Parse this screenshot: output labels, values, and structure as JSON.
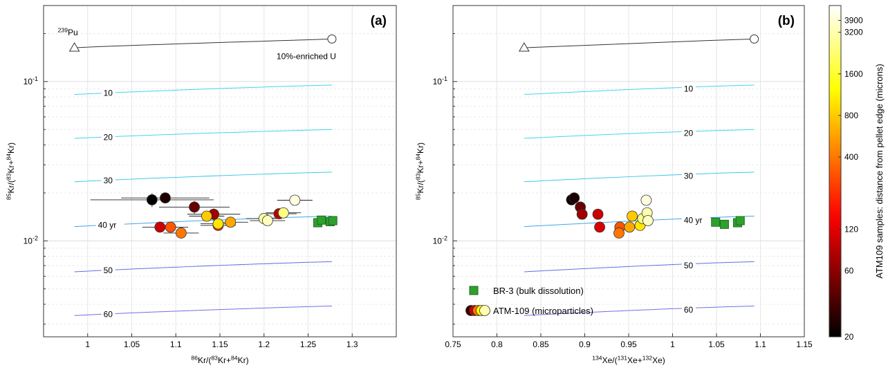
{
  "chart_data": [
    {
      "panel": "(a)",
      "type": "scatter",
      "xlabel": "86Kr/(83Kr+84Kr)",
      "ylabel": "85Kr/(83Kr+84Kr)",
      "xlim": [
        0.95,
        1.35
      ],
      "ylim": [
        0.0025,
        0.3
      ],
      "yscale": "log",
      "xticks": [
        "1",
        "1.05",
        "1.1",
        "1.15",
        "1.2",
        "1.25",
        "1.3"
      ],
      "yticks": [
        "10-1",
        "10-2"
      ],
      "grid": true,
      "endmembers": [
        {
          "label": "239Pu",
          "x": 0.985,
          "y": 0.163,
          "marker": "triangle"
        },
        {
          "label": "10%-enriched U",
          "x": 1.277,
          "y": 0.185,
          "marker": "circle"
        }
      ],
      "decay_lines": [
        {
          "label": "10",
          "x": [
            0.985,
            1.277
          ],
          "y": [
            0.083,
            0.095
          ]
        },
        {
          "label": "20",
          "x": [
            0.985,
            1.277
          ],
          "y": [
            0.044,
            0.05
          ]
        },
        {
          "label": "30",
          "x": [
            0.985,
            1.277
          ],
          "y": [
            0.0235,
            0.027
          ]
        },
        {
          "label": "40 yr",
          "x": [
            0.985,
            1.277
          ],
          "y": [
            0.0123,
            0.0143
          ]
        },
        {
          "label": "50",
          "x": [
            0.985,
            1.277
          ],
          "y": [
            0.0064,
            0.0074
          ]
        },
        {
          "label": "60",
          "x": [
            0.985,
            1.277
          ],
          "y": [
            0.0034,
            0.0039
          ]
        }
      ],
      "series": [
        {
          "name": "BR-3 (bulk dissolution)",
          "marker": "square",
          "color": "#2ea02e",
          "points": [
            {
              "x": 1.261,
              "y": 0.013
            },
            {
              "x": 1.265,
              "y": 0.0135
            },
            {
              "x": 1.275,
              "y": 0.0132
            },
            {
              "x": 1.278,
              "y": 0.0134
            }
          ]
        },
        {
          "name": "ATM-109 (microparticles)",
          "marker": "circle",
          "points": [
            {
              "x": 1.073,
              "y": 0.0181,
              "d": 20,
              "xerr": 0.07,
              "yerr": 0.0018
            },
            {
              "x": 1.088,
              "y": 0.0186,
              "d": 25,
              "xerr": 0.05,
              "yerr": 0.0012
            },
            {
              "x": 1.121,
              "y": 0.0163,
              "d": 45,
              "xerr": 0.04,
              "yerr": 0.0015
            },
            {
              "x": 1.143,
              "y": 0.0147,
              "d": 70,
              "xerr": 0.03,
              "yerr": 0.0013
            },
            {
              "x": 1.082,
              "y": 0.0122,
              "d": 100,
              "xerr": 0.02,
              "yerr": 0.0008
            },
            {
              "x": 1.148,
              "y": 0.0125,
              "d": 200,
              "xerr": 0.02,
              "yerr": 0.0008
            },
            {
              "x": 1.094,
              "y": 0.0122,
              "d": 300,
              "xerr": 0.02,
              "yerr": 0.0008
            },
            {
              "x": 1.106,
              "y": 0.0112,
              "d": 400,
              "xerr": 0.02,
              "yerr": 0.0008
            },
            {
              "x": 1.135,
              "y": 0.0143,
              "d": 800,
              "xerr": 0.02,
              "yerr": 0.0008
            },
            {
              "x": 1.148,
              "y": 0.0128,
              "d": 1000,
              "xerr": 0.02,
              "yerr": 0.0008
            },
            {
              "x": 1.162,
              "y": 0.0131,
              "d": 600,
              "xerr": 0.02,
              "yerr": 0.0008
            },
            {
              "x": 1.217,
              "y": 0.0148,
              "d": 90,
              "xerr": 0.02,
              "yerr": 0.0008
            },
            {
              "x": 1.222,
              "y": 0.015,
              "d": 2500,
              "xerr": 0.02,
              "yerr": 0.0008
            },
            {
              "x": 1.2,
              "y": 0.0138,
              "d": 3000,
              "xerr": 0.02,
              "yerr": 0.0008
            },
            {
              "x": 1.204,
              "y": 0.0134,
              "d": 3500,
              "xerr": 0.02,
              "yerr": 0.0008
            },
            {
              "x": 1.235,
              "y": 0.018,
              "d": 4200,
              "xerr": 0.02,
              "yerr": 0.0008
            }
          ]
        }
      ]
    },
    {
      "panel": "(b)",
      "type": "scatter",
      "xlabel": "134Xe/(131Xe+132Xe)",
      "ylabel": "85Kr/(83Kr+84Kr)",
      "xlim": [
        0.75,
        1.15
      ],
      "ylim": [
        0.0025,
        0.3
      ],
      "yscale": "log",
      "xticks": [
        "0.75",
        "0.8",
        "0.85",
        "0.9",
        "0.95",
        "1",
        "1.05",
        "1.1",
        "1.15"
      ],
      "yticks": [
        "10-1",
        "10-2"
      ],
      "grid": true,
      "legend_position": "bottom-left",
      "endmembers": [
        {
          "label": "",
          "x": 0.831,
          "y": 0.163,
          "marker": "triangle"
        },
        {
          "label": "",
          "x": 1.093,
          "y": 0.185,
          "marker": "circle"
        }
      ],
      "decay_lines": [
        {
          "label": "10",
          "x": [
            0.831,
            1.093
          ],
          "y": [
            0.083,
            0.095
          ]
        },
        {
          "label": "20",
          "x": [
            0.831,
            1.093
          ],
          "y": [
            0.044,
            0.05
          ]
        },
        {
          "label": "30",
          "x": [
            0.831,
            1.093
          ],
          "y": [
            0.0235,
            0.027
          ]
        },
        {
          "label": "40 yr",
          "x": [
            0.831,
            1.093
          ],
          "y": [
            0.0123,
            0.0143
          ]
        },
        {
          "label": "50",
          "x": [
            0.831,
            1.093
          ],
          "y": [
            0.0064,
            0.0074
          ]
        },
        {
          "label": "60",
          "x": [
            0.831,
            1.093
          ],
          "y": [
            0.0034,
            0.0039
          ]
        }
      ],
      "series": [
        {
          "name": "BR-3 (bulk dissolution)",
          "marker": "square",
          "color": "#2ea02e",
          "points": [
            {
              "x": 1.049,
              "y": 0.0131
            },
            {
              "x": 1.059,
              "y": 0.0127
            },
            {
              "x": 1.074,
              "y": 0.013
            },
            {
              "x": 1.077,
              "y": 0.0134
            }
          ]
        },
        {
          "name": "ATM-109 (microparticles)",
          "marker": "circle",
          "points": [
            {
              "x": 0.885,
              "y": 0.0181,
              "d": 20
            },
            {
              "x": 0.888,
              "y": 0.0186,
              "d": 25
            },
            {
              "x": 0.895,
              "y": 0.0163,
              "d": 45
            },
            {
              "x": 0.897,
              "y": 0.0147,
              "d": 70
            },
            {
              "x": 0.915,
              "y": 0.0147,
              "d": 100
            },
            {
              "x": 0.917,
              "y": 0.0122,
              "d": 110
            },
            {
              "x": 0.94,
              "y": 0.0122,
              "d": 300
            },
            {
              "x": 0.939,
              "y": 0.0112,
              "d": 400
            },
            {
              "x": 0.951,
              "y": 0.0122,
              "d": 600
            },
            {
              "x": 0.954,
              "y": 0.0143,
              "d": 800
            },
            {
              "x": 0.963,
              "y": 0.0125,
              "d": 1000
            },
            {
              "x": 0.966,
              "y": 0.0138,
              "d": 2500
            },
            {
              "x": 0.97,
              "y": 0.018,
              "d": 4200
            },
            {
              "x": 0.971,
              "y": 0.015,
              "d": 3200
            },
            {
              "x": 0.972,
              "y": 0.0134,
              "d": 3600
            }
          ]
        }
      ],
      "legend": [
        {
          "label": "BR-3 (bulk dissolution)",
          "marker": "square"
        },
        {
          "label": "ATM-109 (microparticles)",
          "marker": "circles"
        }
      ]
    }
  ],
  "colorbar": {
    "label": "ATM109 samples: distance from pellet edge (microns)",
    "ticks": [
      "20",
      "60",
      "120",
      "400",
      "800",
      "1600",
      "3200",
      "3900"
    ],
    "tick_values": [
      20,
      60,
      120,
      400,
      800,
      1600,
      3200,
      3900
    ],
    "range": [
      20,
      5000
    ],
    "scale": "log",
    "colormap": "hot"
  }
}
